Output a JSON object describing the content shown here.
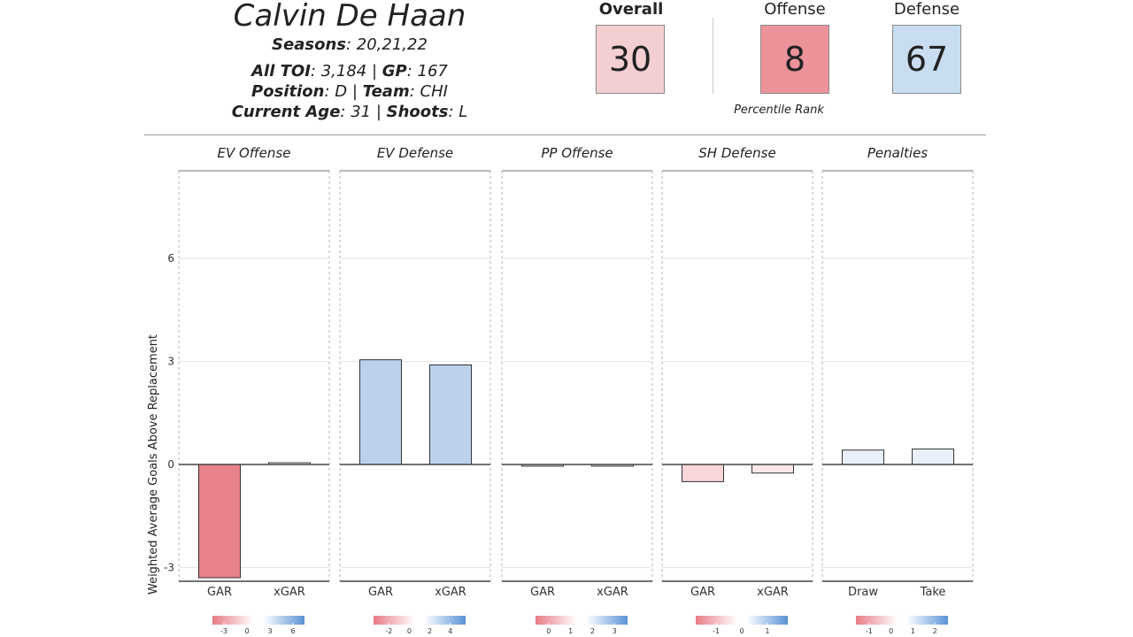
{
  "player": {
    "name": "Calvin De Haan",
    "seasons_label": "Seasons",
    "seasons": "20,21,22",
    "toi_label": "All TOI",
    "toi": "3,184",
    "gp_label": "GP",
    "gp": "167",
    "position_label": "Position",
    "position": "D",
    "team_label": "Team",
    "team": "CHI",
    "age_label": "Current Age",
    "age": "31",
    "shoots_label": "Shoots",
    "shoots": "L"
  },
  "ratings": {
    "overall_label": "Overall",
    "overall": "30",
    "offense_label": "Offense",
    "offense": "8",
    "defense_label": "Defense",
    "defense": "67",
    "percentile_label": "Percentile Rank",
    "colors": {
      "overall": "#f4cfd2",
      "offense": "#ec939a",
      "defense": "#c8ddf0"
    }
  },
  "chart_data": {
    "type": "bar",
    "ylabel": "Weighted Average Goals Above Replacement",
    "ylim": [
      -3.3,
      8.5
    ],
    "yticks": [
      -3,
      0,
      3,
      6
    ],
    "grid": true,
    "panels": [
      {
        "title": "EV Offense",
        "categories": [
          "GAR",
          "xGAR"
        ],
        "values": [
          -3.3,
          0.05
        ],
        "colors": [
          "#e8828b",
          "#ffffff"
        ],
        "legend_ticks": [
          "-3",
          "0",
          "3",
          "6"
        ],
        "legend_range": [
          -4.5,
          7.5
        ]
      },
      {
        "title": "EV Defense",
        "categories": [
          "GAR",
          "xGAR"
        ],
        "values": [
          3.05,
          2.9
        ],
        "colors": [
          "#bcd2ec",
          "#bcd2ec"
        ],
        "legend_ticks": [
          "-2",
          "0",
          "2",
          "4"
        ],
        "legend_range": [
          -3.5,
          5.5
        ]
      },
      {
        "title": "PP Offense",
        "categories": [
          "GAR",
          "xGAR"
        ],
        "values": [
          -0.05,
          -0.05
        ],
        "colors": [
          "#f2f2f4",
          "#f2f2f4"
        ],
        "legend_ticks": [
          "0",
          "1",
          "2",
          "3"
        ],
        "legend_range": [
          -0.6,
          3.6
        ]
      },
      {
        "title": "SH Defense",
        "categories": [
          "GAR",
          "xGAR"
        ],
        "values": [
          -0.5,
          -0.25
        ],
        "colors": [
          "#f9d6d9",
          "#fbe7e8"
        ],
        "legend_ticks": [
          "-1",
          "0",
          "1"
        ],
        "legend_range": [
          -1.8,
          1.8
        ]
      },
      {
        "title": "Penalties",
        "categories": [
          "Draw",
          "Take"
        ],
        "values": [
          0.42,
          0.45
        ],
        "colors": [
          "#e9f0fa",
          "#e9f0fa"
        ],
        "legend_ticks": [
          "-1",
          "0",
          "1",
          "2"
        ],
        "legend_range": [
          -1.6,
          2.6
        ]
      }
    ]
  }
}
